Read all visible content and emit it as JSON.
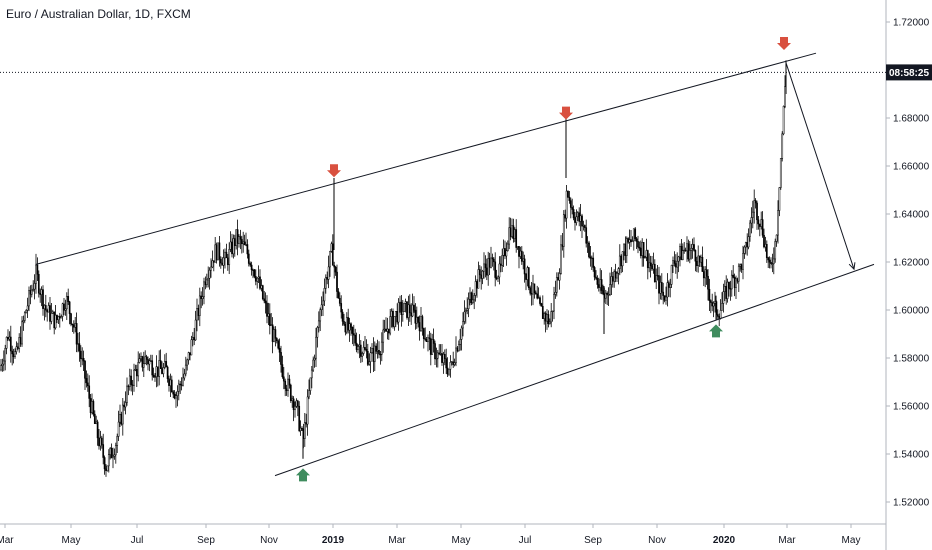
{
  "chart_data": {
    "type": "candlestick",
    "title": "Euro / Australian Dollar, 1D, FXCM",
    "countdown_label": "08:58:25",
    "y_range": [
      1.51,
      1.73
    ],
    "y_ticks": [
      "1.72000",
      "1.70000",
      "1.68000",
      "1.66000",
      "1.64000",
      "1.62000",
      "1.60000",
      "1.58000",
      "1.56000",
      "1.54000",
      "1.52000"
    ],
    "x_ticks": [
      {
        "label": "Mar",
        "bold": false
      },
      {
        "label": "May",
        "bold": false
      },
      {
        "label": "Jul",
        "bold": false
      },
      {
        "label": "Sep",
        "bold": false
      },
      {
        "label": "Nov",
        "bold": false
      },
      {
        "label": "2019",
        "bold": true
      },
      {
        "label": "Mar",
        "bold": false
      },
      {
        "label": "May",
        "bold": false
      },
      {
        "label": "Jul",
        "bold": false
      },
      {
        "label": "Sep",
        "bold": false
      },
      {
        "label": "Nov",
        "bold": false
      },
      {
        "label": "2020",
        "bold": true
      },
      {
        "label": "Mar",
        "bold": false
      },
      {
        "label": "May",
        "bold": false
      }
    ],
    "price_path": [
      [
        0,
        1.575
      ],
      [
        8,
        1.59
      ],
      [
        16,
        1.58
      ],
      [
        26,
        1.6
      ],
      [
        36,
        1.615
      ],
      [
        46,
        1.6
      ],
      [
        56,
        1.595
      ],
      [
        66,
        1.605
      ],
      [
        76,
        1.59
      ],
      [
        86,
        1.57
      ],
      [
        96,
        1.55
      ],
      [
        106,
        1.535
      ],
      [
        116,
        1.545
      ],
      [
        126,
        1.565
      ],
      [
        136,
        1.575
      ],
      [
        146,
        1.58
      ],
      [
        156,
        1.575
      ],
      [
        166,
        1.575
      ],
      [
        176,
        1.565
      ],
      [
        186,
        1.575
      ],
      [
        196,
        1.595
      ],
      [
        206,
        1.615
      ],
      [
        216,
        1.625
      ],
      [
        226,
        1.62
      ],
      [
        236,
        1.63
      ],
      [
        246,
        1.625
      ],
      [
        256,
        1.615
      ],
      [
        266,
        1.6
      ],
      [
        276,
        1.585
      ],
      [
        286,
        1.57
      ],
      [
        296,
        1.56
      ],
      [
        303,
        1.545
      ],
      [
        312,
        1.575
      ],
      [
        322,
        1.605
      ],
      [
        332,
        1.625
      ],
      [
        340,
        1.6
      ],
      [
        350,
        1.59
      ],
      [
        360,
        1.585
      ],
      [
        370,
        1.58
      ],
      [
        380,
        1.585
      ],
      [
        390,
        1.595
      ],
      [
        400,
        1.6
      ],
      [
        410,
        1.6
      ],
      [
        420,
        1.595
      ],
      [
        430,
        1.585
      ],
      [
        440,
        1.58
      ],
      [
        450,
        1.575
      ],
      [
        460,
        1.59
      ],
      [
        470,
        1.605
      ],
      [
        480,
        1.615
      ],
      [
        490,
        1.62
      ],
      [
        500,
        1.615
      ],
      [
        510,
        1.635
      ],
      [
        520,
        1.625
      ],
      [
        530,
        1.61
      ],
      [
        540,
        1.6
      ],
      [
        550,
        1.595
      ],
      [
        560,
        1.62
      ],
      [
        567,
        1.65
      ],
      [
        574,
        1.64
      ],
      [
        584,
        1.635
      ],
      [
        594,
        1.615
      ],
      [
        604,
        1.605
      ],
      [
        614,
        1.615
      ],
      [
        624,
        1.625
      ],
      [
        634,
        1.63
      ],
      [
        644,
        1.625
      ],
      [
        654,
        1.615
      ],
      [
        664,
        1.605
      ],
      [
        674,
        1.62
      ],
      [
        684,
        1.625
      ],
      [
        694,
        1.625
      ],
      [
        704,
        1.615
      ],
      [
        714,
        1.6
      ],
      [
        720,
        1.6
      ],
      [
        728,
        1.61
      ],
      [
        738,
        1.615
      ],
      [
        746,
        1.625
      ],
      [
        754,
        1.645
      ],
      [
        762,
        1.635
      ],
      [
        770,
        1.615
      ],
      [
        776,
        1.63
      ],
      [
        781,
        1.665
      ],
      [
        786,
        1.7
      ]
    ],
    "channel_upper": [
      [
        36,
        1.619
      ],
      [
        816,
        1.707
      ]
    ],
    "channel_lower": [
      [
        275,
        1.531
      ],
      [
        874,
        1.619
      ]
    ],
    "projection": [
      [
        786,
        1.703
      ],
      [
        854,
        1.617
      ]
    ],
    "sell_markers": [
      [
        334,
        1.657
      ],
      [
        566,
        1.681
      ],
      [
        784,
        1.71
      ]
    ],
    "buy_markers": [
      [
        303,
        1.534
      ],
      [
        716,
        1.594
      ]
    ],
    "current_price": 1.699
  }
}
